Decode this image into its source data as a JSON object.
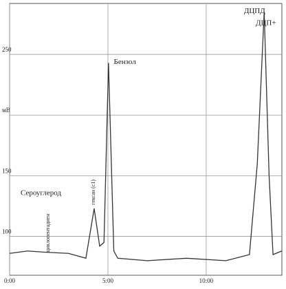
{
  "chart_data": {
    "type": "line",
    "x": [
      0,
      0.91,
      1.78,
      3.0,
      3.88,
      4.3,
      4.58,
      4.8,
      5.03,
      5.3,
      5.5,
      7.0,
      9.0,
      11.0,
      12.2,
      12.6,
      12.95,
      13.2,
      13.4,
      13.85
    ],
    "series": [
      {
        "color": "#333333",
        "values": [
          86,
          88,
          87,
          86,
          82,
          123,
          92,
          95,
          243,
          88,
          82,
          80,
          82,
          80,
          85,
          160,
          285,
          150,
          85,
          88
        ]
      }
    ],
    "xlim": [
      0,
      13.85
    ],
    "ylim": [
      68,
      292
    ],
    "xticks": [
      {
        "value": 0,
        "label": "0:00"
      },
      {
        "value": 5,
        "label": "5:00"
      },
      {
        "value": 10,
        "label": "10:00"
      }
    ],
    "yticks": [
      100,
      150,
      {
        "value": 200,
        "label": "мВ"
      },
      250
    ],
    "grid": true,
    "annotations": [
      {
        "text": "ДЦПД",
        "x": 11.92,
        "y": 284
      },
      {
        "text": "ДЦП+",
        "x": 12.52,
        "y": 274
      },
      {
        "text": "Бензол",
        "x": 5.3,
        "y": 242
      },
      {
        "text": "Сероуглерод",
        "x": 0.56,
        "y": 134
      }
    ],
    "vertical_annotations": [
      {
        "text": "гексан (с1)",
        "x": 4.34,
        "y": 126
      },
      {
        "text": "циклопентадиен",
        "x": 2.03,
        "y": 87
      }
    ]
  }
}
